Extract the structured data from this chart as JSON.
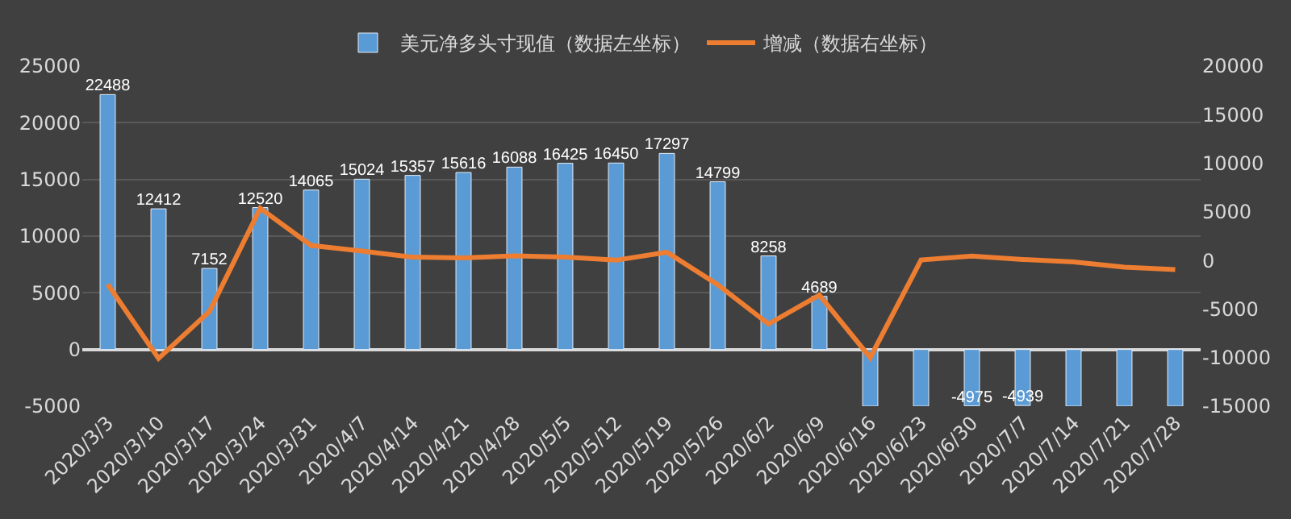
{
  "chart_data": {
    "type": "bar",
    "categories": [
      "2020/3/3",
      "2020/3/10",
      "2020/3/17",
      "2020/3/24",
      "2020/3/31",
      "2020/4/7",
      "2020/4/14",
      "2020/4/21",
      "2020/4/28",
      "2020/5/5",
      "2020/5/12",
      "2020/5/19",
      "2020/5/26",
      "2020/6/2",
      "2020/6/9",
      "2020/6/16",
      "2020/6/23",
      "2020/6/30",
      "2020/7/7",
      "2020/7/14",
      "2020/7/21",
      "2020/7/28"
    ],
    "series": [
      {
        "name": "美元净多头寸现值（数据左坐标）",
        "color": "#5b9bd5",
        "values": [
          22488,
          12412,
          7152,
          12520,
          14065,
          15024,
          15357,
          15616,
          16088,
          16425,
          16450,
          17297,
          14799,
          8258,
          4689,
          -5000,
          -5000,
          -4975,
          -4939,
          -5000,
          -5000,
          -5000
        ],
        "value_labels": [
          "22488",
          "12412",
          "7152",
          "12520",
          "14065",
          "15024",
          "15357",
          "15616",
          "16088",
          "16425",
          "16450",
          "17297",
          "14799",
          "8258",
          "4689",
          null,
          null,
          "-4975",
          "-4939",
          null,
          null,
          null
        ]
      },
      {
        "name": "增减（数据右坐标）",
        "type": "line",
        "axis": "y2",
        "color": "#ed7d31",
        "values": [
          -2450,
          -10076,
          -5260,
          5368,
          1545,
          959,
          333,
          259,
          472,
          337,
          25,
          847,
          -2498,
          -6541,
          -3569,
          -10000,
          50,
          450,
          100,
          -150,
          -700,
          -950
        ]
      }
    ],
    "ylim": [
      -5000,
      25000
    ],
    "yticks": [
      -5000,
      0,
      5000,
      10000,
      15000,
      20000,
      25000
    ],
    "y2lim": [
      -15000,
      20000
    ],
    "y2ticks": [
      -15000,
      -10000,
      -5000,
      0,
      5000,
      10000,
      15000,
      20000
    ],
    "grid": "y",
    "legend": "top",
    "marker": "none",
    "line_style": "solid"
  }
}
